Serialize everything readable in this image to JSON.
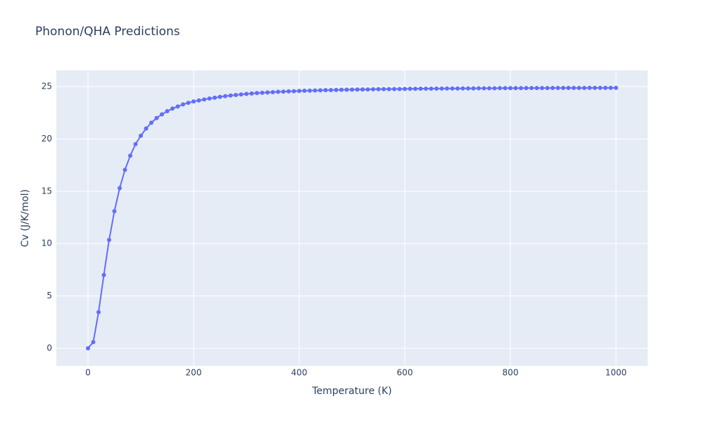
{
  "chart_data": {
    "type": "line",
    "title": "Phonon/QHA Predictions",
    "xlabel": "Temperature (K)",
    "ylabel": "Cv (J/K/mol)",
    "x": [
      0,
      10,
      20,
      30,
      40,
      50,
      60,
      70,
      80,
      90,
      100,
      110,
      120,
      130,
      140,
      150,
      160,
      170,
      180,
      190,
      200,
      210,
      220,
      230,
      240,
      250,
      260,
      270,
      280,
      290,
      300,
      310,
      320,
      330,
      340,
      350,
      360,
      370,
      380,
      390,
      400,
      410,
      420,
      430,
      440,
      450,
      460,
      470,
      480,
      490,
      500,
      510,
      520,
      530,
      540,
      550,
      560,
      570,
      580,
      590,
      600,
      610,
      620,
      630,
      640,
      650,
      660,
      670,
      680,
      690,
      700,
      710,
      720,
      730,
      740,
      750,
      760,
      770,
      780,
      790,
      800,
      810,
      820,
      830,
      840,
      850,
      860,
      870,
      880,
      890,
      900,
      910,
      920,
      930,
      940,
      950,
      960,
      970,
      980,
      990,
      1000
    ],
    "series": [
      {
        "name": "Cv",
        "color": "#636efa",
        "values": [
          0,
          0.6,
          3.45,
          7.0,
          10.35,
          13.1,
          15.3,
          17.05,
          18.4,
          19.5,
          20.3,
          21.0,
          21.55,
          22.0,
          22.35,
          22.65,
          22.9,
          23.1,
          23.3,
          23.45,
          23.58,
          23.68,
          23.77,
          23.86,
          23.94,
          24.02,
          24.09,
          24.15,
          24.2,
          24.25,
          24.3,
          24.34,
          24.38,
          24.41,
          24.44,
          24.47,
          24.5,
          24.52,
          24.54,
          24.56,
          24.58,
          24.6,
          24.61,
          24.63,
          24.64,
          24.66,
          24.67,
          24.68,
          24.69,
          24.7,
          24.71,
          24.72,
          24.73,
          24.73,
          24.74,
          24.75,
          24.76,
          24.76,
          24.77,
          24.77,
          24.78,
          24.79,
          24.79,
          24.8,
          24.8,
          24.8,
          24.81,
          24.81,
          24.82,
          24.82,
          24.82,
          24.83,
          24.83,
          24.83,
          24.84,
          24.84,
          24.84,
          24.84,
          24.85,
          24.85,
          24.85,
          24.85,
          24.85,
          24.86,
          24.86,
          24.86,
          24.86,
          24.86,
          24.87,
          24.87,
          24.87,
          24.87,
          24.87,
          24.87,
          24.87,
          24.88,
          24.88,
          24.88,
          24.88,
          24.88,
          24.88
        ]
      }
    ],
    "xlim": [
      -60,
      1060
    ],
    "ylim": [
      -1.68,
      26.55
    ],
    "xticks": [
      0,
      200,
      400,
      600,
      800,
      1000
    ],
    "yticks": [
      0,
      5,
      10,
      15,
      20,
      25
    ],
    "grid": true
  }
}
